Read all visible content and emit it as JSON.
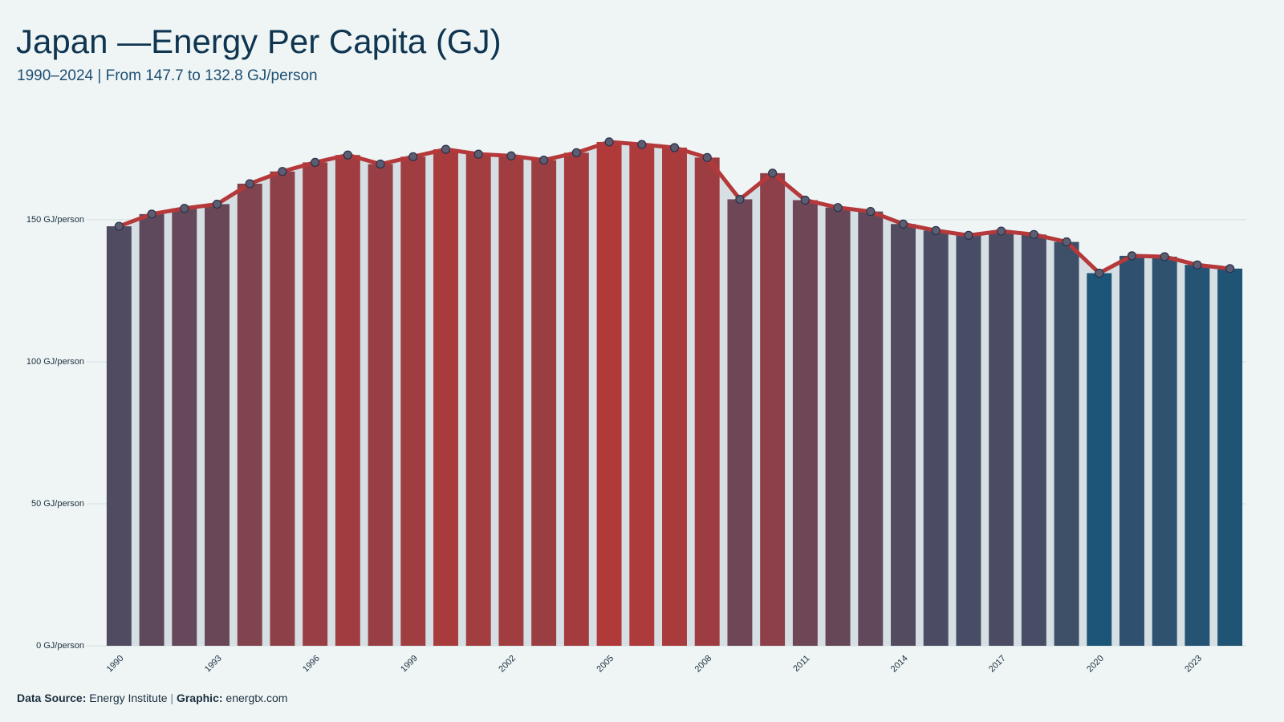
{
  "chart_data": {
    "type": "bar_line",
    "title": "Japan —Energy Per Capita (GJ)",
    "subtitle": "1990–2024 | From 147.7 to 132.8 GJ/person",
    "x": [
      1990,
      1991,
      1992,
      1993,
      1994,
      1995,
      1996,
      1997,
      1998,
      1999,
      2000,
      2001,
      2002,
      2003,
      2004,
      2005,
      2006,
      2007,
      2008,
      2009,
      2010,
      2011,
      2012,
      2013,
      2014,
      2015,
      2016,
      2017,
      2018,
      2019,
      2020,
      2021,
      2022,
      2023,
      2024
    ],
    "values": [
      147.7,
      152.0,
      154.0,
      155.5,
      162.7,
      167.0,
      170.2,
      172.8,
      169.6,
      172.2,
      174.8,
      173.1,
      172.5,
      171.0,
      173.6,
      177.4,
      176.5,
      175.4,
      171.9,
      157.2,
      166.4,
      156.9,
      154.3,
      152.9,
      148.5,
      146.2,
      144.5,
      146.0,
      144.8,
      142.2,
      131.2,
      137.3,
      137.0,
      134.1,
      132.8
    ],
    "xticks": [
      1990,
      1993,
      1996,
      1999,
      2002,
      2005,
      2008,
      2011,
      2014,
      2017,
      2020,
      2023
    ],
    "ylim": [
      0,
      185
    ],
    "yticks": [
      {
        "value": 0,
        "label": "0 GJ/person"
      },
      {
        "value": 50,
        "label": "50 GJ/person"
      },
      {
        "value": 100,
        "label": "100 GJ/person"
      },
      {
        "value": 150,
        "label": "150 GJ/person"
      }
    ],
    "grid": true,
    "color_scale": [
      "#1b5577",
      "#b03a3a"
    ],
    "line_color": "#b5393a",
    "area_color": "#d6e0e4",
    "source_label": "Data Source:",
    "source": "Energy Institute",
    "separator": "|",
    "graphic_label": "Graphic:",
    "graphic": "energtx.com"
  }
}
